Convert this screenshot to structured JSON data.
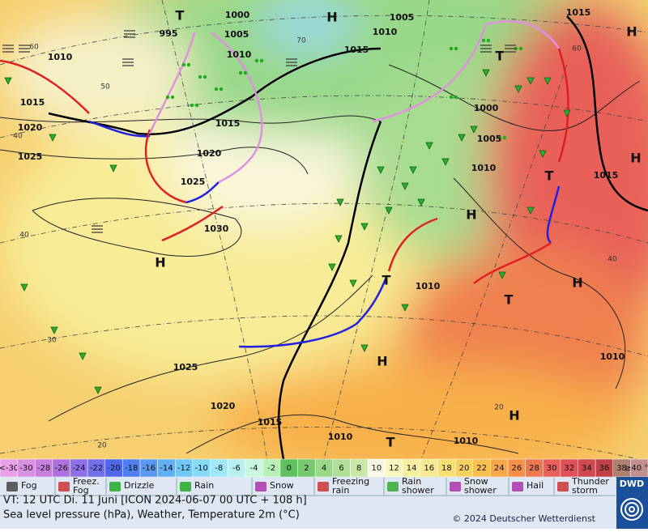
{
  "map": {
    "pressure_labels": [
      "995",
      "1000",
      "1005",
      "1010",
      "1005",
      "1010",
      "1015",
      "1015",
      "1010",
      "1015",
      "1020",
      "1025",
      "1015",
      "1020",
      "1025",
      "1030",
      "1000",
      "1005",
      "1010",
      "1015",
      "1010",
      "1010",
      "1025",
      "1020",
      "1015",
      "1010",
      "1010"
    ],
    "pressure_centers": [
      "H",
      "H",
      "H",
      "H",
      "H",
      "H",
      "H",
      "H",
      "T",
      "T",
      "T",
      "T",
      "T",
      "T"
    ],
    "grid_labels": [
      "60",
      "50",
      "40",
      "70",
      "40",
      "30",
      "20",
      "60",
      "40",
      "20"
    ]
  },
  "temperature_scale": [
    {
      "label": "<-30",
      "color": "#e8a0e8"
    },
    {
      "label": "-30",
      "color": "#d890e0"
    },
    {
      "label": "-28",
      "color": "#c880e0"
    },
    {
      "label": "-26",
      "color": "#b070e0"
    },
    {
      "label": "-24",
      "color": "#9070e8"
    },
    {
      "label": "-22",
      "color": "#7070e8"
    },
    {
      "label": "-20",
      "color": "#5068e8"
    },
    {
      "label": "-18",
      "color": "#5080f0"
    },
    {
      "label": "-16",
      "color": "#5898f0"
    },
    {
      "label": "-14",
      "color": "#60b0f8"
    },
    {
      "label": "-12",
      "color": "#70c8f8"
    },
    {
      "label": "-10",
      "color": "#88d8f8"
    },
    {
      "label": "-8",
      "color": "#a0e8f8"
    },
    {
      "label": "-6",
      "color": "#b8f0f0"
    },
    {
      "label": "-4",
      "color": "#c8f8e0"
    },
    {
      "label": "-2",
      "color": "#b8f0b8"
    },
    {
      "label": "0",
      "color": "#60c060"
    },
    {
      "label": "2",
      "color": "#78c870"
    },
    {
      "label": "4",
      "color": "#98d888"
    },
    {
      "label": "6",
      "color": "#b0e098"
    },
    {
      "label": "8",
      "color": "#c8e8a8"
    },
    {
      "label": "10",
      "color": "#f8f8e8"
    },
    {
      "label": "12",
      "color": "#f8f8c0"
    },
    {
      "label": "14",
      "color": "#f8f0a0"
    },
    {
      "label": "16",
      "color": "#f8e890"
    },
    {
      "label": "18",
      "color": "#f8e070"
    },
    {
      "label": "20",
      "color": "#f8d060"
    },
    {
      "label": "22",
      "color": "#f8c050"
    },
    {
      "label": "24",
      "color": "#f8a848"
    },
    {
      "label": "26",
      "color": "#f89048"
    },
    {
      "label": "28",
      "color": "#f07850"
    },
    {
      "label": "30",
      "color": "#e86058"
    },
    {
      "label": "32",
      "color": "#e05058"
    },
    {
      "label": "34",
      "color": "#d04850"
    },
    {
      "label": "36",
      "color": "#c04048"
    },
    {
      "label": "38",
      "color": "#b08070"
    },
    {
      "label": "≥40 °C",
      "color": "#c09090"
    }
  ],
  "weather_legend": [
    {
      "label": [
        "Fog"
      ]
    },
    {
      "label": [
        "Freez.",
        "Fog"
      ]
    },
    {
      "label": [
        "Drizzle"
      ]
    },
    {
      "label": [
        "Rain"
      ]
    },
    {
      "label": [
        "Snow"
      ]
    },
    {
      "label": [
        "Freezing",
        "rain"
      ]
    },
    {
      "label": [
        "Rain",
        "shower"
      ]
    },
    {
      "label": [
        "Snow",
        "shower"
      ]
    },
    {
      "label": [
        "Hail"
      ]
    },
    {
      "label": [
        "Thunder",
        "storm"
      ]
    }
  ],
  "footer": {
    "valid_time": "VT: 12 UTC Di.  11 Juni [ICON 2024-06-07  00 UTC + 108 h]",
    "description": "Sea level pressure (hPa), Weather, Temperature 2m (°C)",
    "copyright": "© 2024 Deutscher Wetterdienst",
    "logo": "DWD"
  }
}
